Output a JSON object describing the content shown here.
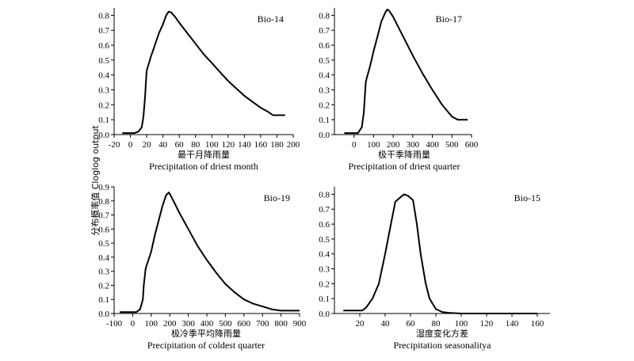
{
  "y_axis_label": "分布概率值 Cloglog output",
  "chart_data": [
    {
      "type": "line",
      "title": "Bio-14",
      "xlabel_cn": "最干月降雨量",
      "xlabel_en": "Precipitation of driest month",
      "ylabel": "分布概率值 Cloglog output",
      "xlim": [
        -20,
        200
      ],
      "ylim": [
        0,
        0.85
      ],
      "xticks": [
        -20,
        0,
        20,
        40,
        60,
        80,
        100,
        120,
        140,
        160,
        180,
        200
      ],
      "yticks": [
        0.0,
        0.1,
        0.2,
        0.3,
        0.4,
        0.5,
        0.6,
        0.7,
        0.8
      ],
      "grid": false,
      "x": [
        -10,
        5,
        10,
        14,
        16,
        18,
        19,
        20,
        25,
        30,
        35,
        40,
        44,
        47,
        50,
        55,
        60,
        70,
        80,
        90,
        100,
        110,
        120,
        130,
        140,
        150,
        160,
        170,
        175,
        180,
        190
      ],
      "y": [
        0.01,
        0.01,
        0.02,
        0.05,
        0.12,
        0.25,
        0.35,
        0.43,
        0.52,
        0.6,
        0.68,
        0.74,
        0.8,
        0.825,
        0.82,
        0.79,
        0.75,
        0.68,
        0.61,
        0.54,
        0.48,
        0.42,
        0.36,
        0.31,
        0.26,
        0.22,
        0.18,
        0.15,
        0.13,
        0.13,
        0.13
      ]
    },
    {
      "type": "line",
      "title": "Bio-17",
      "xlabel_cn": "极干季降雨量",
      "xlabel_en": "Precipitation of driest quarter",
      "ylabel": "分布概率值 Cloglog output",
      "xlim": [
        -100,
        600
      ],
      "ylim": [
        0,
        0.85
      ],
      "xticks": [
        0,
        100,
        200,
        300,
        400,
        500,
        600
      ],
      "yticks": [
        0.0,
        0.1,
        0.2,
        0.3,
        0.4,
        0.5,
        0.6,
        0.7,
        0.8
      ],
      "grid": false,
      "x": [
        -50,
        20,
        40,
        50,
        55,
        60,
        65,
        80,
        100,
        120,
        140,
        160,
        170,
        180,
        200,
        250,
        300,
        350,
        400,
        450,
        500,
        530,
        550,
        580
      ],
      "y": [
        0.01,
        0.01,
        0.05,
        0.15,
        0.25,
        0.35,
        0.38,
        0.45,
        0.56,
        0.66,
        0.76,
        0.82,
        0.84,
        0.83,
        0.79,
        0.66,
        0.53,
        0.41,
        0.3,
        0.2,
        0.12,
        0.1,
        0.1,
        0.1
      ]
    },
    {
      "type": "line",
      "title": "Bio-19",
      "xlabel_cn": "极冷季平均降雨量",
      "xlabel_en": "Precipitation of coldest quarter",
      "ylabel": "分布概率值 Cloglog output",
      "xlim": [
        -100,
        900
      ],
      "ylim": [
        0,
        0.9
      ],
      "xticks": [
        -100,
        0,
        100,
        200,
        300,
        400,
        500,
        600,
        700,
        800,
        900
      ],
      "yticks": [
        0.0,
        0.1,
        0.2,
        0.3,
        0.4,
        0.5,
        0.6,
        0.7,
        0.8,
        0.9
      ],
      "grid": false,
      "x": [
        -70,
        20,
        40,
        55,
        60,
        70,
        80,
        100,
        120,
        140,
        160,
        180,
        195,
        200,
        220,
        250,
        300,
        350,
        400,
        450,
        500,
        550,
        600,
        650,
        700,
        750,
        800,
        850,
        900
      ],
      "y": [
        0.01,
        0.01,
        0.03,
        0.1,
        0.2,
        0.32,
        0.36,
        0.44,
        0.56,
        0.66,
        0.76,
        0.84,
        0.86,
        0.85,
        0.8,
        0.72,
        0.6,
        0.48,
        0.38,
        0.29,
        0.21,
        0.15,
        0.1,
        0.07,
        0.05,
        0.03,
        0.02,
        0.02,
        0.02
      ]
    },
    {
      "type": "line",
      "title": "Bio-15",
      "xlabel_cn": "湿度变化方差",
      "xlabel_en": "Precipitation seasonalitya",
      "ylabel": "分布概率值 Cloglog output",
      "xlim": [
        0,
        170
      ],
      "ylim": [
        0,
        0.85
      ],
      "xticks": [
        20,
        40,
        60,
        80,
        100,
        120,
        140,
        160
      ],
      "yticks": [
        0.0,
        0.1,
        0.2,
        0.3,
        0.4,
        0.5,
        0.6,
        0.7,
        0.8
      ],
      "grid": false,
      "x": [
        7,
        22,
        25,
        30,
        35,
        40,
        45,
        48,
        52,
        55,
        58,
        62,
        65,
        68,
        72,
        75,
        80,
        85,
        90,
        100,
        120,
        140,
        160
      ],
      "y": [
        0.02,
        0.02,
        0.04,
        0.1,
        0.2,
        0.4,
        0.62,
        0.75,
        0.78,
        0.8,
        0.79,
        0.76,
        0.6,
        0.4,
        0.2,
        0.1,
        0.03,
        0.01,
        0.005,
        0.0,
        0.0,
        0.0,
        0.0
      ]
    }
  ]
}
